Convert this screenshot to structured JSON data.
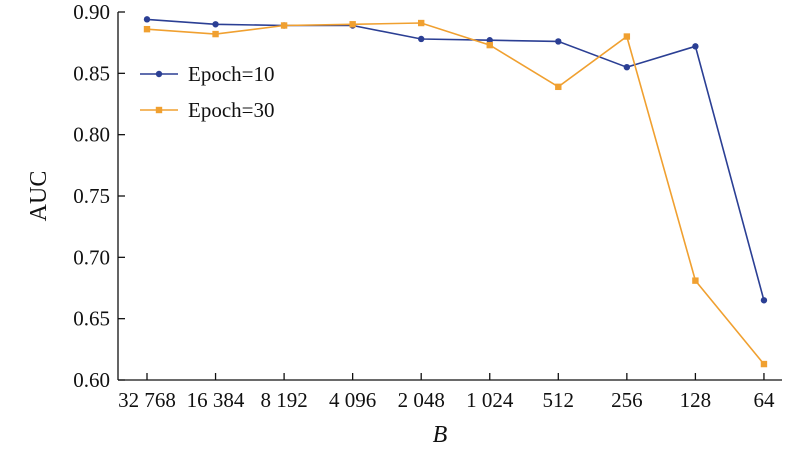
{
  "chart_data": {
    "type": "line",
    "categories": [
      "32 768",
      "16 384",
      "8 192",
      "4 096",
      "2 048",
      "1 024",
      "512",
      "256",
      "128",
      "64"
    ],
    "xlabel": "B",
    "ylabel": "AUC",
    "ylim": [
      0.6,
      0.9
    ],
    "yticks": [
      "0.60",
      "0.65",
      "0.70",
      "0.75",
      "0.80",
      "0.85",
      "0.90"
    ],
    "grid": false,
    "legend": "top-left",
    "series": [
      {
        "name": "Epoch=10",
        "color": "#2b3f94",
        "marker": "circle",
        "values": [
          0.894,
          0.89,
          0.889,
          0.889,
          0.878,
          0.877,
          0.876,
          0.855,
          0.872,
          0.665
        ]
      },
      {
        "name": "Epoch=30",
        "color": "#f0a030",
        "marker": "square",
        "values": [
          0.886,
          0.882,
          0.889,
          0.89,
          0.891,
          0.873,
          0.839,
          0.88,
          0.681,
          0.613
        ]
      }
    ]
  }
}
